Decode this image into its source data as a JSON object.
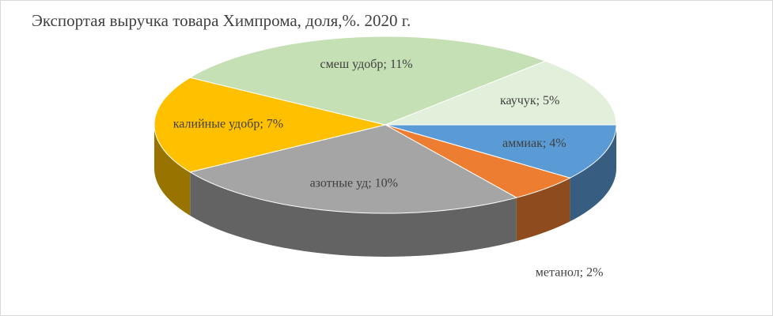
{
  "chart_data": {
    "type": "pie3d",
    "title": "Экспортая выручка товара Химпрома, доля,%. 2020 г.",
    "values": [
      4,
      2,
      10,
      7,
      11,
      5
    ],
    "value_labels": [
      "аммиак; 4%",
      "метанол; 2%",
      "азотные уд; 10%",
      "калийные удобр; 7%",
      "смеш удобр; 11%",
      "каучук; 5%"
    ],
    "colors": [
      "#5b9bd5",
      "#ed7d31",
      "#a5a5a5",
      "#ffc000",
      "#c5e0b4",
      "#e2efda"
    ]
  }
}
